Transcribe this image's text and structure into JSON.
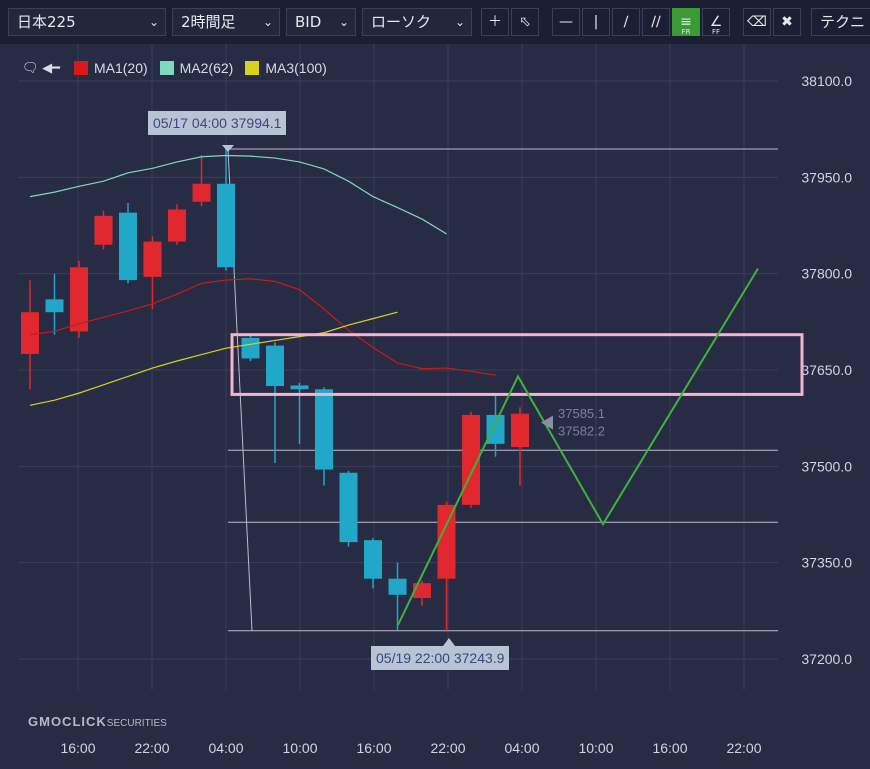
{
  "toolbar": {
    "symbol": "日本225",
    "period": "2時間足",
    "price_type": "BID",
    "chart_style": "ローソク",
    "technical_label": "テクニ"
  },
  "legend": {
    "items": [
      {
        "label": "MA1(20)",
        "color": "#d81a1a"
      },
      {
        "label": "MA2(62)",
        "color": "#7fd9c0"
      },
      {
        "label": "MA3(100)",
        "color": "#d7d31d"
      }
    ]
  },
  "callouts": {
    "high": "05/17 04:00 37994.1",
    "low": "05/19 22:00 37243.9"
  },
  "ghost_labels": [
    "37585.1",
    "37582.2"
  ],
  "logo": {
    "main": "GMOCLICK",
    "sub": "SECURITIES"
  },
  "chart_data": {
    "type": "candlestick",
    "yticks": [
      38100.0,
      37950.0,
      37800.0,
      37650.0,
      37500.0,
      37350.0,
      37200.0
    ],
    "ytick_labels": [
      "38100.0",
      "37950.0",
      "37800.0",
      "37650.0",
      "37500.0",
      "37350.0",
      "37200.0"
    ],
    "xtick_labels": [
      "16:00",
      "22:00",
      "04:00",
      "10:00",
      "16:00",
      "22:00",
      "04:00",
      "10:00",
      "16:00",
      "22:00"
    ],
    "candles": [
      {
        "o": 37740,
        "c": 37675,
        "h": 37790,
        "l": 37620,
        "dir": "down"
      },
      {
        "o": 37740,
        "c": 37760,
        "h": 37800,
        "l": 37705,
        "dir": "up"
      },
      {
        "o": 37810,
        "c": 37710,
        "h": 37820,
        "l": 37700,
        "dir": "down"
      },
      {
        "o": 37890,
        "c": 37845,
        "h": 37898,
        "l": 37838,
        "dir": "down"
      },
      {
        "o": 37790,
        "c": 37895,
        "h": 37910,
        "l": 37785,
        "dir": "up"
      },
      {
        "o": 37850,
        "c": 37795,
        "h": 37858,
        "l": 37745,
        "dir": "down"
      },
      {
        "o": 37900,
        "c": 37850,
        "h": 37908,
        "l": 37845,
        "dir": "down"
      },
      {
        "o": 37940,
        "c": 37912,
        "h": 37985,
        "l": 37905,
        "dir": "down"
      },
      {
        "o": 37940,
        "c": 37810,
        "h": 37994.1,
        "l": 37805,
        "dir": "up"
      },
      {
        "o": 37700,
        "c": 37668,
        "h": 37703,
        "l": 37664,
        "dir": "up"
      },
      {
        "o": 37688,
        "c": 37625,
        "h": 37693,
        "l": 37505,
        "dir": "up"
      },
      {
        "o": 37626,
        "c": 37620,
        "h": 37630,
        "l": 37535,
        "dir": "up"
      },
      {
        "o": 37620,
        "c": 37495,
        "h": 37623,
        "l": 37470,
        "dir": "up"
      },
      {
        "o": 37490,
        "c": 37382,
        "h": 37493,
        "l": 37375,
        "dir": "up"
      },
      {
        "o": 37385,
        "c": 37325,
        "h": 37388,
        "l": 37310,
        "dir": "up"
      },
      {
        "o": 37325,
        "c": 37300,
        "h": 37350,
        "l": 37245,
        "dir": "up"
      },
      {
        "o": 37295,
        "c": 37318,
        "h": 37322,
        "l": 37283,
        "dir": "down"
      },
      {
        "o": 37325,
        "c": 37440,
        "h": 37445,
        "l": 37243.9,
        "dir": "down"
      },
      {
        "o": 37440,
        "c": 37580,
        "h": 37585,
        "l": 37435,
        "dir": "down"
      },
      {
        "o": 37580,
        "c": 37535,
        "h": 37612,
        "l": 37515,
        "dir": "up"
      },
      {
        "o": 37582,
        "c": 37530,
        "h": 37592,
        "l": 37470,
        "dir": "down"
      }
    ],
    "ma1": [
      37705,
      37710,
      37722,
      37732,
      37742,
      37753,
      37768,
      37785,
      37790,
      37792,
      37788,
      37775,
      37745,
      37712,
      37685,
      37661,
      37652,
      37653,
      37648,
      37642
    ],
    "ma2": [
      37920,
      37927,
      37936,
      37944,
      37957,
      37964,
      37974,
      37982,
      37984,
      37983,
      37980,
      37974,
      37963,
      37944,
      37920,
      37903,
      37885,
      37862
    ],
    "ma3": [
      37595,
      37603,
      37614,
      37627,
      37640,
      37653,
      37664,
      37674,
      37684,
      37690,
      37696,
      37702,
      37708,
      37720,
      37730,
      37740
    ],
    "forecast_path": [
      {
        "x": 398,
        "y": 37253
      },
      {
        "x": 518,
        "y": 37640
      },
      {
        "x": 603,
        "y": 37410
      },
      {
        "x": 758,
        "y": 37808
      }
    ],
    "hlines": [
      37994.1,
      37525,
      37413,
      37243.9
    ],
    "highlight_zone": {
      "top": 37705,
      "bottom": 37612
    },
    "ylim": [
      37160,
      38140
    ]
  }
}
